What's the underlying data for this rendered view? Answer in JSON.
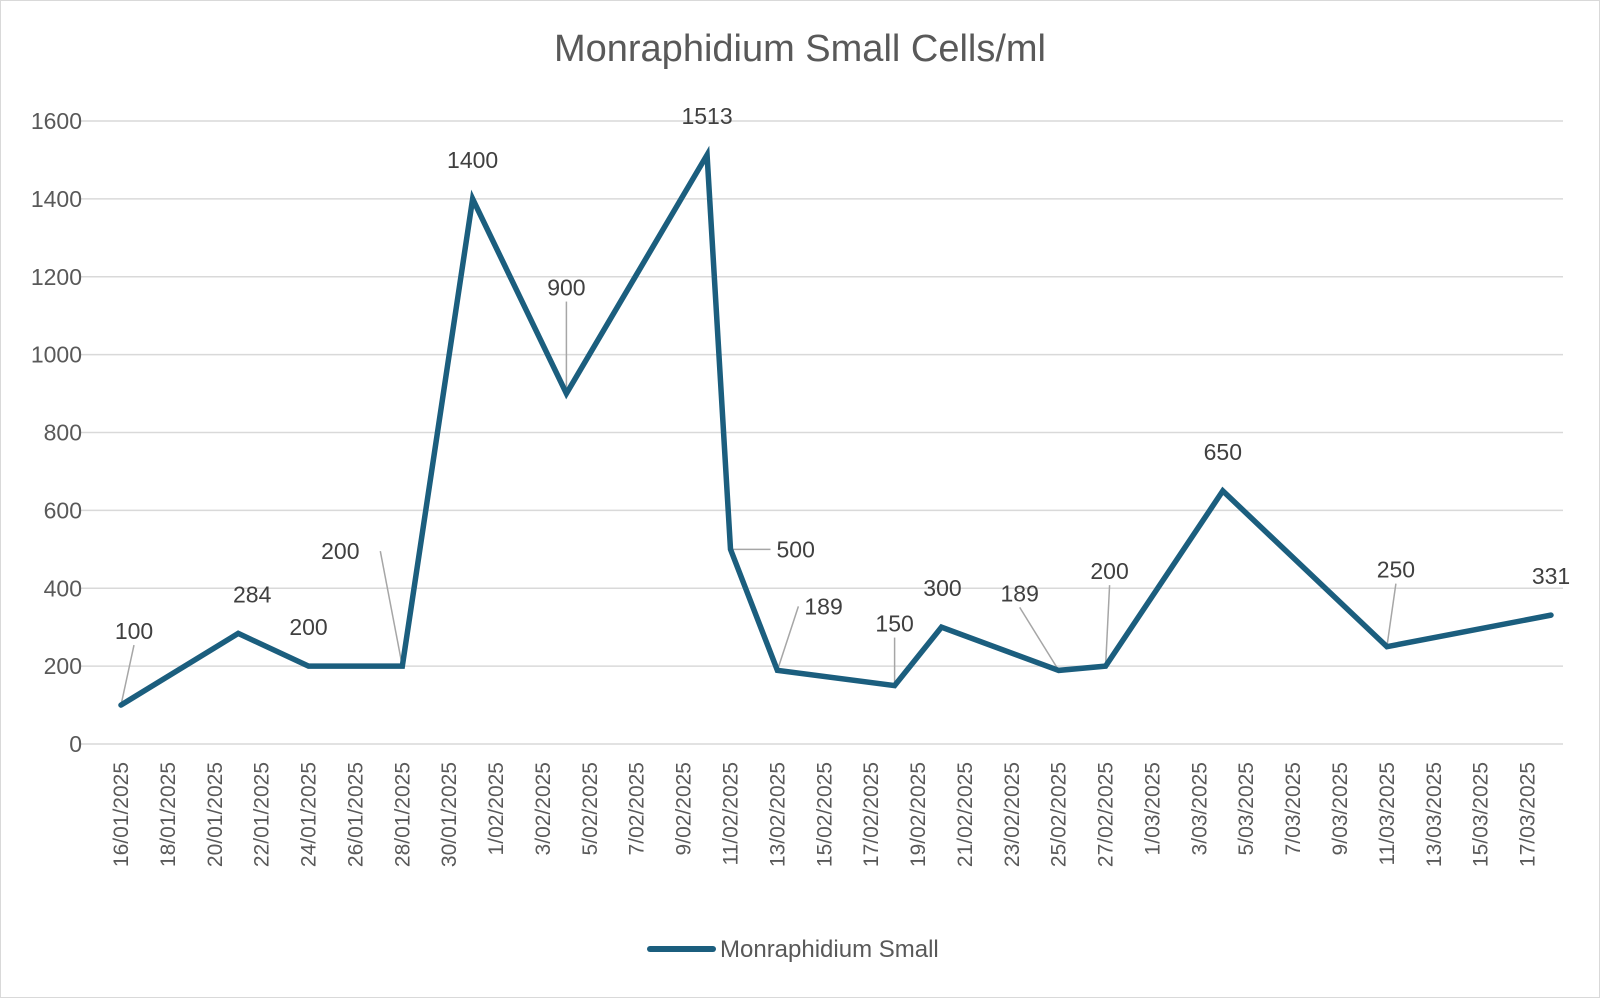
{
  "chart_data": {
    "type": "line",
    "title": "Monraphidium Small Cells/ml",
    "xlabel": "",
    "ylabel": "",
    "ylim": [
      0,
      1600
    ],
    "yticks": [
      "0",
      "200",
      "400",
      "600",
      "800",
      "1000",
      "1200",
      "1400",
      "1600"
    ],
    "xlim": [
      "2025-01-16",
      "2025-03-18"
    ],
    "x_tick_labels": [
      "16/01/2025",
      "18/01/2025",
      "20/01/2025",
      "22/01/2025",
      "24/01/2025",
      "26/01/2025",
      "28/01/2025",
      "30/01/2025",
      "1/02/2025",
      "3/02/2025",
      "5/02/2025",
      "7/02/2025",
      "9/02/2025",
      "11/02/2025",
      "13/02/2025",
      "15/02/2025",
      "17/02/2025",
      "19/02/2025",
      "21/02/2025",
      "23/02/2025",
      "25/02/2025",
      "27/02/2025",
      "1/03/2025",
      "3/03/2025",
      "5/03/2025",
      "7/03/2025",
      "9/03/2025",
      "11/03/2025",
      "13/03/2025",
      "15/03/2025",
      "17/03/2025"
    ],
    "grid": true,
    "legend": "bottom",
    "series": [
      {
        "name": "Monraphidium Small",
        "color": "#1b5e7e",
        "x": [
          "2025-01-16",
          "2025-01-21",
          "2025-01-24",
          "2025-01-28",
          "2025-01-31",
          "2025-02-04",
          "2025-02-10",
          "2025-02-11",
          "2025-02-13",
          "2025-02-18",
          "2025-02-20",
          "2025-02-25",
          "2025-02-27",
          "2025-03-04",
          "2025-03-11",
          "2025-03-18"
        ],
        "values": [
          100,
          284,
          200,
          200,
          1400,
          900,
          1513,
          500,
          189,
          150,
          300,
          189,
          200,
          650,
          250,
          331
        ],
        "labels": [
          "100",
          "284",
          "200",
          "200",
          "1400",
          "900",
          "1513",
          "500",
          "189",
          "150",
          "300",
          "189",
          "200",
          "650",
          "250",
          "331"
        ]
      }
    ]
  }
}
